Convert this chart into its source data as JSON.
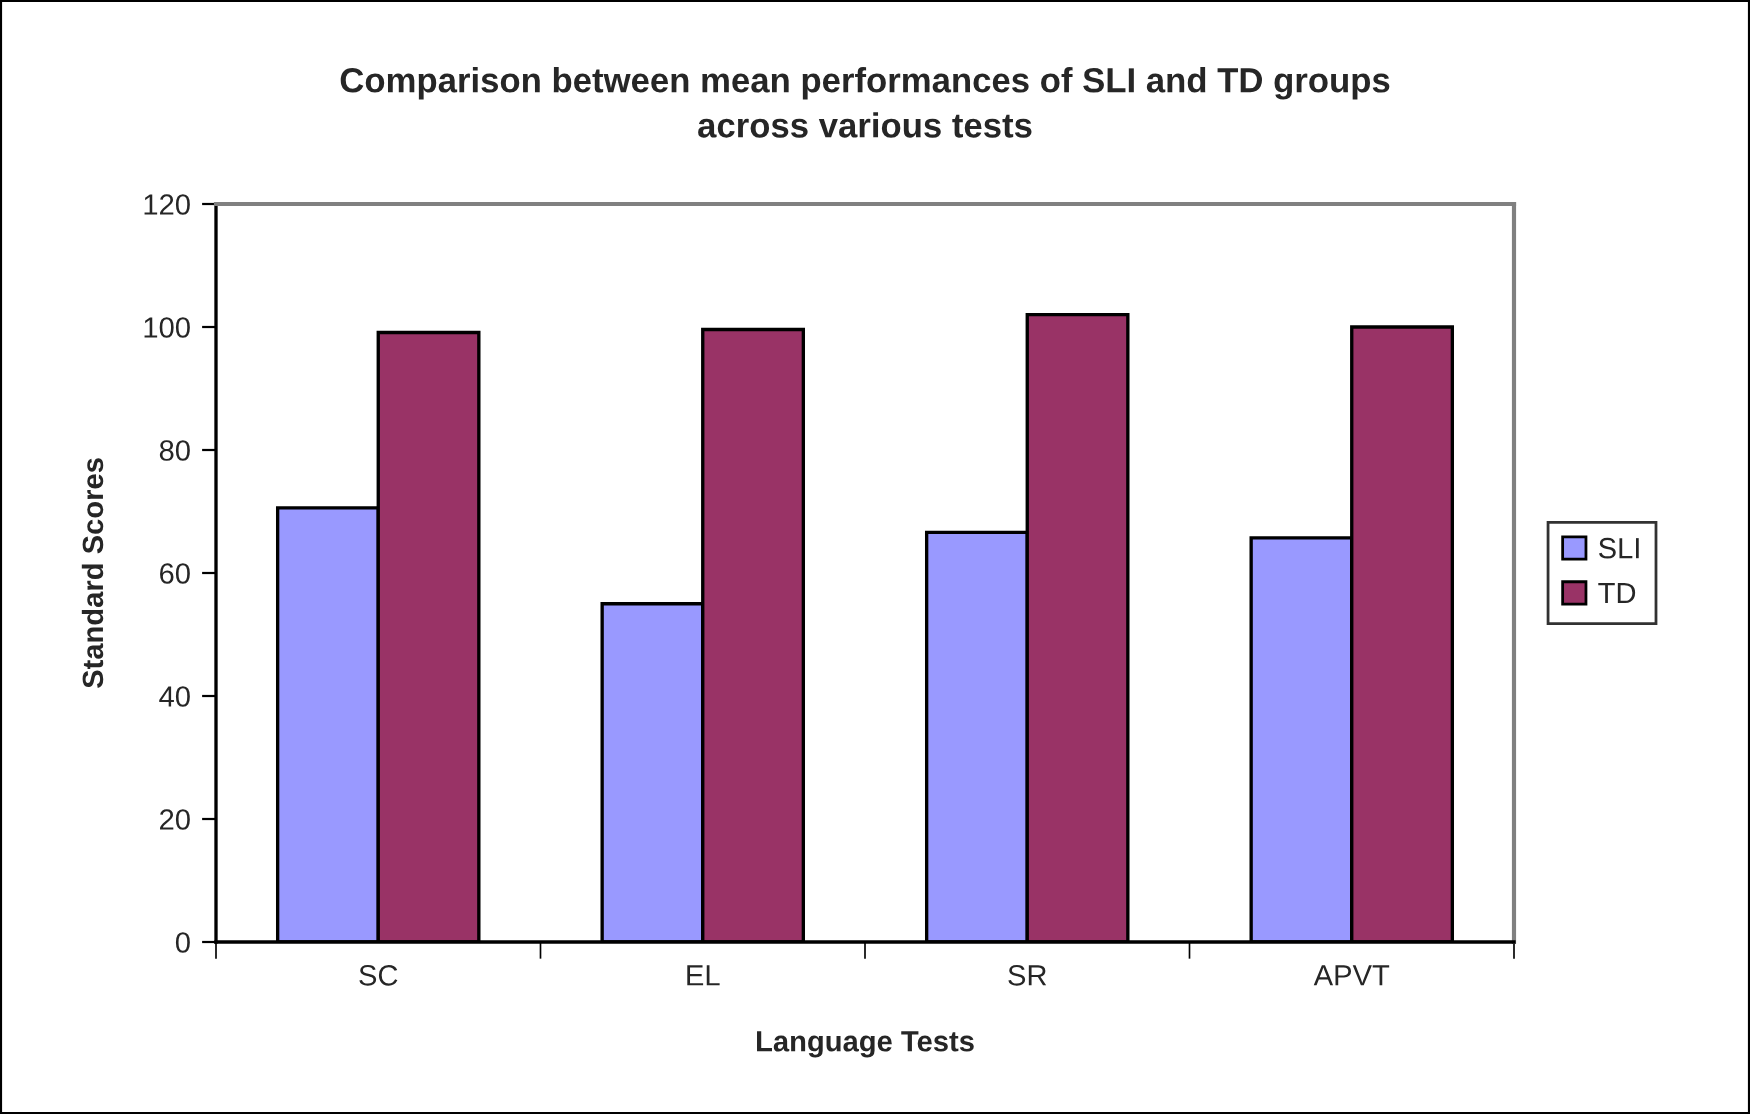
{
  "chart_data": {
    "type": "bar",
    "title": "Comparison between mean performances of SLI and TD groups\nacross various tests",
    "xlabel": "Language Tests",
    "ylabel": "Standard Scores",
    "categories": [
      "SC",
      "EL",
      "SR",
      "APVT"
    ],
    "series": [
      {
        "name": "SLI",
        "color": "#9999ff",
        "values": [
          70.6,
          55.0,
          66.6,
          65.7
        ]
      },
      {
        "name": "TD",
        "color": "#993366",
        "values": [
          99.1,
          99.6,
          102.0,
          100.0
        ]
      }
    ],
    "ylim": [
      0,
      120
    ],
    "yticks": [
      0,
      20,
      40,
      60,
      80,
      100,
      120
    ],
    "legend": "right"
  }
}
